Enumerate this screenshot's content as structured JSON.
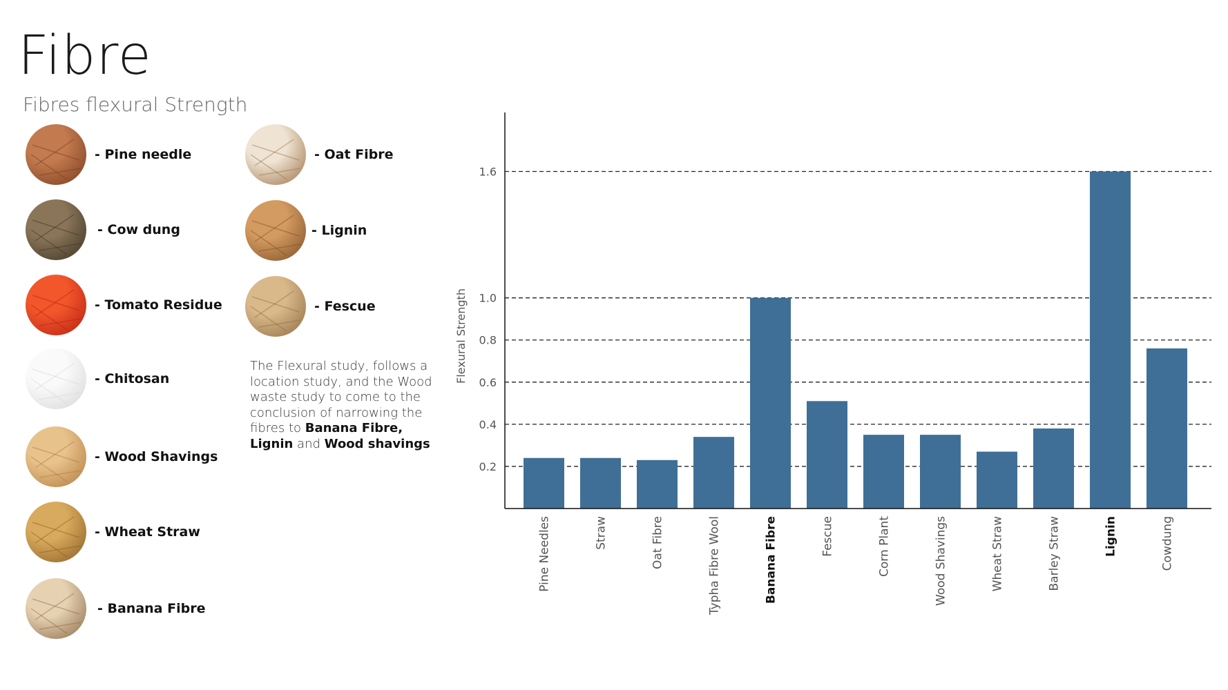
{
  "page": {
    "title": "Fibre",
    "subtitle": "Fibres flexural Strength"
  },
  "materials": [
    {
      "label": "- Pine needle",
      "icon": "pine-needle-thumbnail",
      "colors": [
        "#c27a4e",
        "#7a3b1e"
      ]
    },
    {
      "label": "- Cow dung",
      "icon": "cow-dung-thumbnail",
      "colors": [
        "#8a7558",
        "#3b3223"
      ]
    },
    {
      "label": "- Tomato Residue",
      "icon": "tomato-residue-thumbnail",
      "colors": [
        "#f2572b",
        "#b61f12"
      ]
    },
    {
      "label": "- Chitosan",
      "icon": "chitosan-thumbnail",
      "colors": [
        "#fafafa",
        "#d6d6d6"
      ]
    },
    {
      "label": "- Wood Shavings",
      "icon": "wood-shavings-thumbnail",
      "colors": [
        "#e8c28b",
        "#b07b3e"
      ]
    },
    {
      "label": "- Wheat Straw",
      "icon": "wheat-straw-thumbnail",
      "colors": [
        "#d8aa5d",
        "#8a5d24"
      ]
    },
    {
      "label": "- Banana Fibre",
      "icon": "banana-fibre-thumbnail",
      "colors": [
        "#e6d2b2",
        "#8c6a48"
      ]
    },
    {
      "label": "- Oat Fibre",
      "icon": "oat-fibre-thumbnail",
      "colors": [
        "#efe4d3",
        "#9b7147"
      ]
    },
    {
      "label": "- Lignin",
      "icon": "lignin-thumbnail",
      "colors": [
        "#d49b61",
        "#7d4e24"
      ]
    },
    {
      "label": "- Fescue",
      "icon": "fescue-thumbnail",
      "colors": [
        "#d9b98a",
        "#8e6c42"
      ]
    }
  ],
  "description": {
    "text_1": "The Flexural study, follows a location study, and the Wood waste study to come to the conclusion  of narrowing the fibres to ",
    "bold_1": "Banana Fibre, Lignin",
    "text_2": " and ",
    "bold_2": "Wood shavings"
  },
  "chart_data": {
    "type": "bar",
    "ylabel": "Flexural Strength",
    "xlabel": "",
    "ylim": [
      0,
      1.88
    ],
    "yticks": [
      0.2,
      0.4,
      0.6,
      0.8,
      1.0,
      1.6
    ],
    "ytick_labels": [
      "0.2",
      "0.4",
      "0.6",
      "0.8",
      "1.0",
      "1.6"
    ],
    "grid": "horizontal dashed",
    "categories": [
      "Pine Needles",
      "Straw",
      "Oat Fibre",
      "Typha Fibre Wool",
      "Banana Fibre",
      "Fescue",
      "Corn Plant",
      "Wood Shavings",
      "Wheat Straw",
      "Barley Straw",
      "Lignin",
      "Cowdung"
    ],
    "bold_categories": [
      "Banana Fibre",
      "Lignin"
    ],
    "values": [
      0.24,
      0.24,
      0.23,
      0.34,
      1.0,
      0.51,
      0.35,
      0.35,
      0.27,
      0.38,
      1.6,
      0.76
    ],
    "bar_color": "#3f6f96"
  }
}
